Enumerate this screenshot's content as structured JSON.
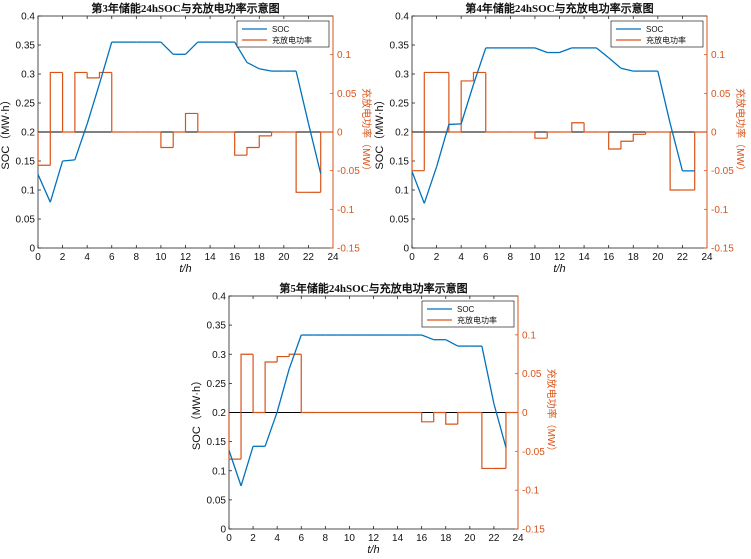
{
  "colors": {
    "soc": "#0072bd",
    "power": "#d95319",
    "axis": "#222222",
    "zero": "#000000"
  },
  "chart_data": [
    {
      "type": "line",
      "title": "第3年储能24hSOC与充放电功率示意图",
      "xlabel": "t/h",
      "ylabel_left": "SOC（MW·h）",
      "ylabel_right": "充放电功率（MW）",
      "xlim": [
        0,
        24
      ],
      "ylim_left": [
        0,
        0.4
      ],
      "ylim_right": [
        -0.15,
        0.15
      ],
      "x_ticks": [
        "0",
        "2",
        "4",
        "6",
        "8",
        "10",
        "12",
        "14",
        "16",
        "18",
        "20",
        "22",
        "24"
      ],
      "y_left_ticks": [
        "0",
        "0.05",
        "0.1",
        "0.15",
        "0.2",
        "0.25",
        "0.3",
        "0.35",
        "0.4"
      ],
      "y_right_ticks": [
        "-0.15",
        "-0.1",
        "-0.05",
        "0",
        "0.05",
        "0.1"
      ],
      "legend": [
        "SOC",
        "充放电功率"
      ],
      "soc_x": [
        0,
        1,
        2,
        3,
        4,
        5,
        6,
        7,
        8,
        9,
        10,
        11,
        12,
        13,
        14,
        15,
        16,
        17,
        18,
        19,
        20,
        21,
        22,
        23
      ],
      "soc": [
        0.127,
        0.079,
        0.15,
        0.152,
        0.214,
        0.283,
        0.355,
        0.355,
        0.355,
        0.355,
        0.355,
        0.334,
        0.334,
        0.355,
        0.355,
        0.355,
        0.355,
        0.32,
        0.309,
        0.305,
        0.305,
        0.305,
        0.215,
        0.128
      ],
      "power": [
        -0.043,
        0.077,
        0,
        0.077,
        0.07,
        0.077,
        0,
        0,
        0,
        0,
        -0.02,
        0,
        0.024,
        0,
        0,
        0,
        -0.03,
        -0.02,
        -0.005,
        0,
        0,
        -0.078,
        -0.078,
        0
      ]
    },
    {
      "type": "line",
      "title": "第4年储能24hSOC与充放电功率示意图",
      "xlabel": "t/h",
      "ylabel_left": "SOC（MW·h）",
      "ylabel_right": "充放电功率（MW）",
      "xlim": [
        0,
        24
      ],
      "ylim_left": [
        0,
        0.4
      ],
      "ylim_right": [
        -0.15,
        0.15
      ],
      "x_ticks": [
        "0",
        "2",
        "4",
        "6",
        "8",
        "10",
        "12",
        "14",
        "16",
        "18",
        "20",
        "22",
        "24"
      ],
      "y_left_ticks": [
        "0",
        "0.05",
        "0.1",
        "0.15",
        "0.2",
        "0.25",
        "0.3",
        "0.35",
        "0.4"
      ],
      "y_right_ticks": [
        "-0.15",
        "-0.1",
        "-0.05",
        "0",
        "0.05",
        "0.1"
      ],
      "legend": [
        "SOC",
        "充放电功率"
      ],
      "soc_x": [
        0,
        1,
        2,
        3,
        4,
        5,
        6,
        7,
        8,
        9,
        10,
        11,
        12,
        13,
        14,
        15,
        16,
        17,
        18,
        19,
        20,
        21,
        22,
        23
      ],
      "soc": [
        0.132,
        0.077,
        0.14,
        0.213,
        0.214,
        0.282,
        0.345,
        0.345,
        0.345,
        0.345,
        0.345,
        0.337,
        0.337,
        0.345,
        0.345,
        0.345,
        0.328,
        0.31,
        0.305,
        0.305,
        0.305,
        0.215,
        0.133,
        0.133
      ],
      "power": [
        -0.05,
        0.077,
        0.077,
        0,
        0.066,
        0.077,
        0,
        0,
        0,
        0,
        -0.008,
        0,
        0,
        0.012,
        0,
        0,
        -0.022,
        -0.012,
        -0.003,
        0,
        0,
        -0.075,
        -0.075,
        0
      ]
    },
    {
      "type": "line",
      "title": "第5年储能24hSOC与充放电功率示意图",
      "xlabel": "t/h",
      "ylabel_left": "SOC（MW·h）",
      "ylabel_right": "充放电功率（MW）",
      "xlim": [
        0,
        24
      ],
      "ylim_left": [
        0,
        0.4
      ],
      "ylim_right": [
        -0.15,
        0.15
      ],
      "x_ticks": [
        "0",
        "2",
        "4",
        "6",
        "8",
        "10",
        "12",
        "14",
        "16",
        "18",
        "20",
        "22",
        "24"
      ],
      "y_left_ticks": [
        "0",
        "0.05",
        "0.1",
        "0.15",
        "0.2",
        "0.25",
        "0.3",
        "0.35",
        "0.4"
      ],
      "y_right_ticks": [
        "-0.15",
        "-0.1",
        "-0.05",
        "0",
        "0.05",
        "0.1"
      ],
      "legend": [
        "SOC",
        "充放电功率"
      ],
      "soc_x": [
        0,
        1,
        2,
        3,
        4,
        5,
        6,
        7,
        8,
        9,
        10,
        11,
        12,
        13,
        14,
        15,
        16,
        17,
        18,
        19,
        20,
        21,
        22,
        23
      ],
      "soc": [
        0.135,
        0.074,
        0.142,
        0.142,
        0.201,
        0.275,
        0.333,
        0.333,
        0.333,
        0.333,
        0.333,
        0.333,
        0.333,
        0.333,
        0.333,
        0.333,
        0.333,
        0.325,
        0.325,
        0.314,
        0.314,
        0.314,
        0.215,
        0.14
      ],
      "power": [
        -0.06,
        0.075,
        0,
        0.065,
        0.072,
        0.075,
        0,
        0,
        0,
        0,
        0,
        0,
        0,
        0,
        0,
        0,
        -0.012,
        0,
        -0.015,
        0,
        0,
        -0.072,
        -0.072,
        0
      ]
    }
  ]
}
